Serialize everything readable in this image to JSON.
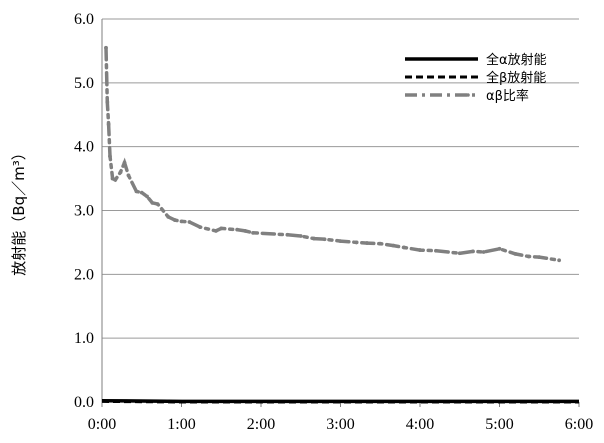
{
  "chart_data": {
    "type": "line",
    "title": "",
    "xlabel": "",
    "ylabel": "放射能（Bq／m³）",
    "ylim": [
      0,
      6
    ],
    "xlim": [
      "0:00",
      "6:00"
    ],
    "yticks": [
      "0.0",
      "1.0",
      "2.0",
      "3.0",
      "4.0",
      "5.0",
      "6.0"
    ],
    "xticks": [
      "0:00",
      "1:00",
      "2:00",
      "3:00",
      "4:00",
      "5:00",
      "6:00"
    ],
    "grid": "horizontal",
    "legend_position": "top-right",
    "series": [
      {
        "name": "全α放射能",
        "style": "solid",
        "color": "#000000",
        "x": [
          "0:00",
          "1:00",
          "2:00",
          "3:00",
          "4:00",
          "5:00",
          "6:00"
        ],
        "values": [
          0.02,
          0.01,
          0.01,
          0.01,
          0.01,
          0.01,
          0.01
        ]
      },
      {
        "name": "全β放射能",
        "style": "dashed",
        "color": "#000000",
        "x": [
          "0:00",
          "1:00",
          "2:00",
          "3:00",
          "4:00",
          "5:00",
          "6:00"
        ],
        "values": [
          0.01,
          0.0,
          0.0,
          0.0,
          0.0,
          0.0,
          0.0
        ]
      },
      {
        "name": "αβ比率",
        "style": "dash-dot",
        "color": "#808080",
        "x": [
          "0:03",
          "0:04",
          "0:05",
          "0:06",
          "0:08",
          "0:10",
          "0:14",
          "0:17",
          "0:20",
          "0:26",
          "0:30",
          "0:34",
          "0:38",
          "0:42",
          "0:50",
          "0:55",
          "1:00",
          "1:06",
          "1:14",
          "1:26",
          "1:30",
          "1:42",
          "1:48",
          "1:54",
          "2:20",
          "2:30",
          "2:40",
          "2:48",
          "3:00",
          "3:12",
          "3:20",
          "3:30",
          "3:40",
          "3:48",
          "4:00",
          "4:12",
          "4:30",
          "4:40",
          "4:48",
          "5:00",
          "5:12",
          "5:22",
          "5:30",
          "5:45"
        ],
        "values": [
          5.55,
          4.7,
          4.35,
          3.85,
          3.5,
          3.48,
          3.6,
          3.75,
          3.55,
          3.3,
          3.28,
          3.22,
          3.12,
          3.1,
          2.9,
          2.85,
          2.83,
          2.82,
          2.74,
          2.68,
          2.72,
          2.7,
          2.68,
          2.65,
          2.62,
          2.6,
          2.56,
          2.55,
          2.52,
          2.5,
          2.49,
          2.48,
          2.45,
          2.42,
          2.38,
          2.37,
          2.33,
          2.36,
          2.35,
          2.4,
          2.32,
          2.28,
          2.27,
          2.22
        ]
      }
    ]
  }
}
